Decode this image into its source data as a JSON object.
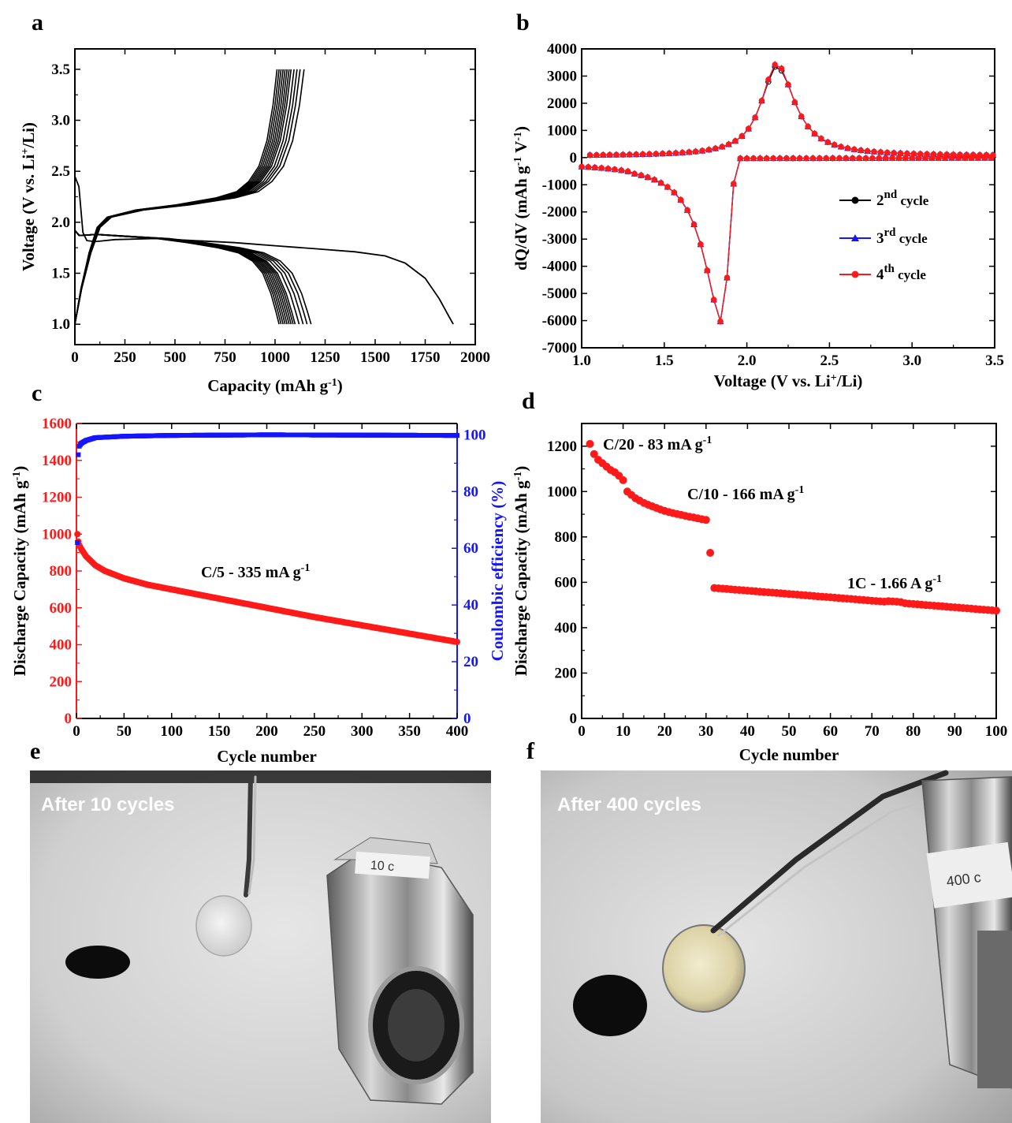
{
  "panels": {
    "a": {
      "label": "a"
    },
    "b": {
      "label": "b"
    },
    "c": {
      "label": "c"
    },
    "d": {
      "label": "d"
    },
    "e": {
      "label": "e",
      "caption": "After 10 cycles",
      "cell_tag": "10 c"
    },
    "f": {
      "label": "f",
      "caption": "After 400 cycles",
      "cell_tag": "400 c"
    }
  },
  "colors": {
    "black": "#000000",
    "red": "#ff1a1a",
    "blue": "#1515ff"
  },
  "chart_data": [
    {
      "id": "a",
      "type": "line",
      "xlabel": "Capacity (mAh g⁻¹)",
      "ylabel": "Voltage (V vs. Li⁺/Li)",
      "xlim": [
        0,
        2000
      ],
      "ylim": [
        0.8,
        3.7
      ],
      "xticks": [
        "0",
        "250",
        "500",
        "750",
        "1000",
        "1250",
        "1500",
        "1750",
        "2000"
      ],
      "yticks": [
        "1.0",
        "1.5",
        "2.0",
        "2.5",
        "3.0",
        "3.5"
      ],
      "first_discharge": {
        "x": [
          0,
          20,
          40,
          60,
          100,
          200,
          400,
          600,
          800,
          1000,
          1200,
          1400,
          1550,
          1650,
          1750,
          1820,
          1870,
          1890
        ],
        "y": [
          2.45,
          2.35,
          1.9,
          1.82,
          1.81,
          1.83,
          1.84,
          1.82,
          1.8,
          1.77,
          1.74,
          1.71,
          1.67,
          1.6,
          1.45,
          1.25,
          1.07,
          1.0
        ]
      },
      "discharge_end_capacities": [
        1180,
        1160,
        1140,
        1120,
        1100,
        1090,
        1080,
        1070,
        1060,
        1050,
        1040,
        1030,
        1020
      ],
      "charge_end_capacities": [
        1145,
        1125,
        1110,
        1095,
        1080,
        1070,
        1060,
        1050,
        1040,
        1030,
        1020,
        1010
      ],
      "cutoff_voltage": {
        "low": 1.0,
        "high": 3.5
      }
    },
    {
      "id": "b",
      "type": "line",
      "xlabel": "Voltage (V vs. Li⁺/Li)",
      "ylabel": "dQ/dV (mAh g⁻¹ V⁻¹)",
      "xlim": [
        1.0,
        3.5
      ],
      "ylim": [
        -7000,
        4000
      ],
      "xticks": [
        "1.0",
        "1.5",
        "2.0",
        "2.5",
        "3.0",
        "3.5"
      ],
      "yticks": [
        "4000",
        "3000",
        "2000",
        "1000",
        "0",
        "-1000",
        "-2000",
        "-3000",
        "-4000",
        "-5000",
        "-6000",
        "-7000"
      ],
      "legend": [
        {
          "name": "2nd cycle",
          "base": "2",
          "sup": "nd",
          "suffix": " cycle",
          "color": "#000000",
          "marker": "circle"
        },
        {
          "name": "3rd cycle",
          "base": "3",
          "sup": "rd",
          "suffix": " cycle",
          "color": "#1515ff",
          "marker": "triangle"
        },
        {
          "name": "4th cycle",
          "base": "4",
          "sup": "th",
          "suffix": " cycle",
          "color": "#ff1a1a",
          "marker": "circle"
        }
      ],
      "charge_peak": {
        "x": 2.18,
        "y": 3450
      },
      "discharge_peak": {
        "x": 1.86,
        "y": -6150
      }
    },
    {
      "id": "c",
      "type": "scatter",
      "xlabel": "Cycle number",
      "ylabel_left": "Discharge Capacity (mAh g⁻¹)",
      "ylabel_right": "Coulombic efficiency (%)",
      "xlim": [
        0,
        400
      ],
      "ylim_left": [
        0,
        1600
      ],
      "ylim_right": [
        0,
        104
      ],
      "xticks": [
        "0",
        "50",
        "100",
        "150",
        "200",
        "250",
        "300",
        "350",
        "400"
      ],
      "yticks_left": [
        "0",
        "200",
        "400",
        "600",
        "800",
        "1000",
        "1200",
        "1400",
        "1600"
      ],
      "yticks_right": [
        "0",
        "20",
        "40",
        "60",
        "80",
        "100"
      ],
      "annotation": {
        "text": "C/5 - 335 mA g",
        "sup": "-1"
      },
      "discharge_capacity": {
        "cycles": [
          1,
          2,
          3,
          5,
          10,
          20,
          30,
          50,
          75,
          100,
          150,
          200,
          250,
          300,
          350,
          400
        ],
        "values": [
          1000,
          960,
          940,
          920,
          880,
          830,
          800,
          760,
          725,
          700,
          650,
          600,
          550,
          505,
          460,
          415
        ]
      },
      "coulombic_efficiency": {
        "cycles": [
          1,
          2,
          3,
          5,
          10,
          20,
          50,
          100,
          200,
          400
        ],
        "values": [
          62,
          93,
          96,
          97,
          98,
          99,
          99.5,
          99.8,
          100,
          99.8
        ]
      }
    },
    {
      "id": "d",
      "type": "scatter",
      "xlabel": "Cycle number",
      "ylabel": "Discharge Capacity (mAh g⁻¹)",
      "xlim": [
        0,
        100
      ],
      "ylim": [
        0,
        1300
      ],
      "xticks": [
        "0",
        "10",
        "20",
        "30",
        "40",
        "50",
        "60",
        "70",
        "80",
        "90",
        "100"
      ],
      "yticks": [
        "0",
        "200",
        "400",
        "600",
        "800",
        "1000",
        "1200"
      ],
      "annotations": [
        {
          "text": "C/20 - 83 mA g",
          "sup": "-1"
        },
        {
          "text": "C/10 - 166 mA g",
          "sup": "-1"
        },
        {
          "text": "1C - 1.66 A g",
          "sup": "-1"
        }
      ],
      "segments": [
        {
          "rate": "C/20",
          "cycles": [
            2,
            3,
            4,
            5,
            6,
            7,
            8,
            9,
            10
          ],
          "values": [
            1210,
            1165,
            1140,
            1125,
            1110,
            1095,
            1085,
            1070,
            1050
          ]
        },
        {
          "rate": "C/10",
          "cycles": [
            11,
            12,
            13,
            14,
            15,
            16,
            17,
            18,
            19,
            20,
            21,
            22,
            23,
            24,
            25,
            26,
            27,
            28,
            29,
            30,
            31
          ],
          "values": [
            1000,
            985,
            970,
            960,
            950,
            942,
            935,
            928,
            921,
            915,
            910,
            905,
            901,
            897,
            893,
            889,
            886,
            882,
            878,
            875,
            730
          ]
        },
        {
          "rate": "1C",
          "cycles_start": 32,
          "cycles_end": 100,
          "value_start": 575,
          "value_end": 475
        }
      ]
    }
  ]
}
